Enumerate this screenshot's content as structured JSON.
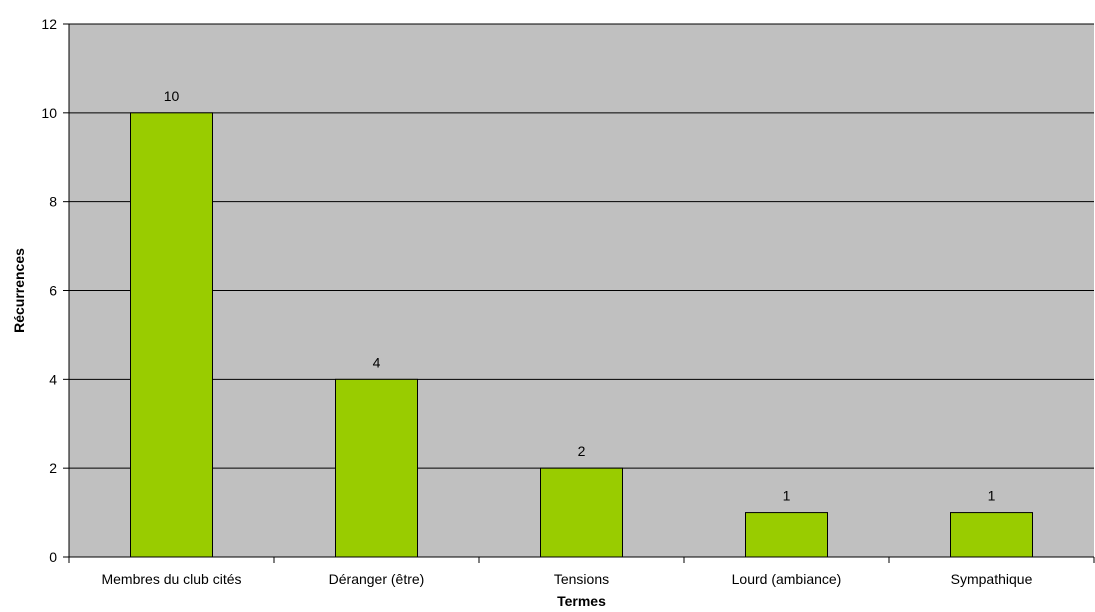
{
  "chart_data": {
    "type": "bar",
    "categories": [
      "Membres du club cités",
      "Déranger (être)",
      "Tensions",
      "Lourd (ambiance)",
      "Sympathique"
    ],
    "values": [
      10,
      4,
      2,
      1,
      1
    ],
    "data_labels": [
      "10",
      "4",
      "2",
      "1",
      "1"
    ],
    "xlabel": "Termes",
    "ylabel": "Récurrences",
    "ylim": [
      0,
      12
    ],
    "yticks": [
      "0",
      "2",
      "4",
      "6",
      "8",
      "10",
      "12"
    ],
    "grid": true,
    "legend": "none",
    "colors": {
      "bar": "#99cc00",
      "bar_stroke": "#000000",
      "plot_background": "#c0c0c0",
      "gridline": "#000000"
    }
  }
}
